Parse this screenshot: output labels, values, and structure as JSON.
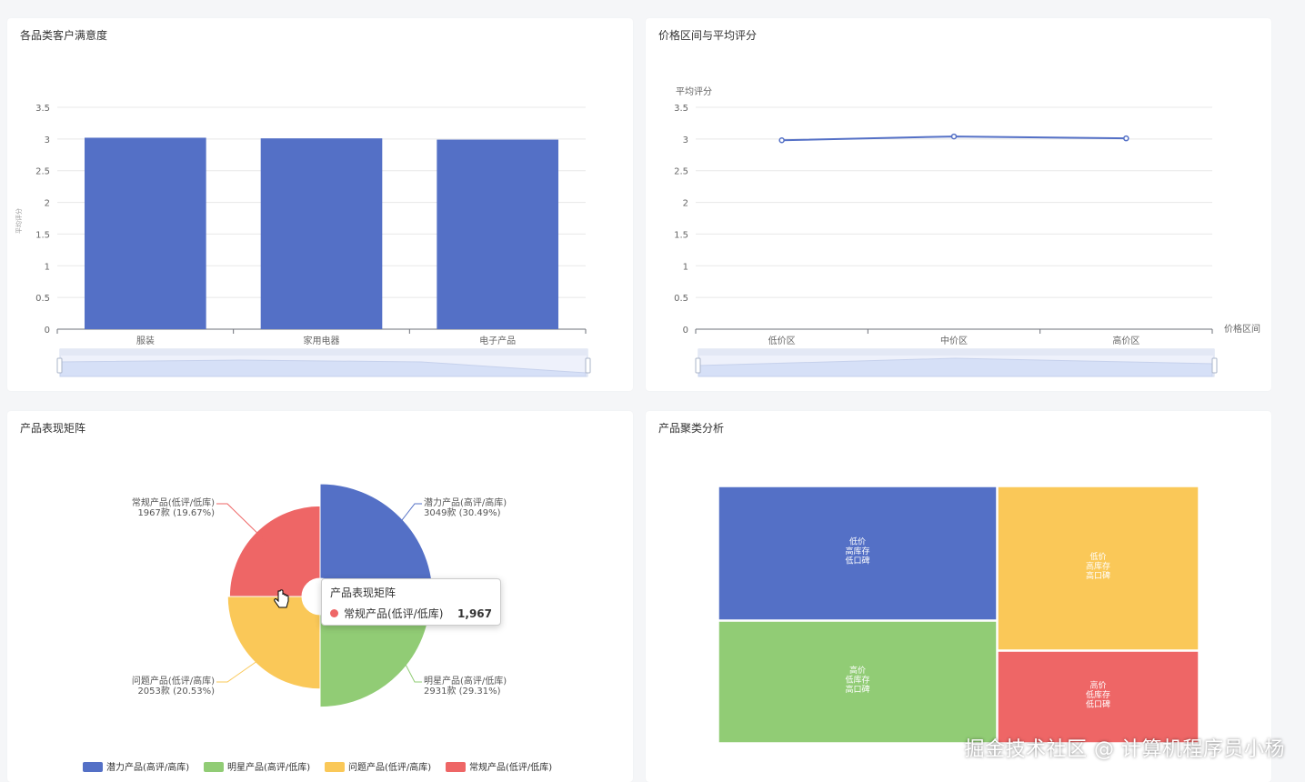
{
  "panels": {
    "satisfaction": {
      "title": "各品类客户满意度"
    },
    "price": {
      "title": "价格区间与平均评分"
    },
    "matrix": {
      "title": "产品表现矩阵"
    },
    "cluster": {
      "title": "产品聚类分析"
    }
  },
  "chart_data": [
    {
      "type": "bar",
      "categories": [
        "服装",
        "家用电器",
        "电子产品"
      ],
      "values": [
        3.02,
        3.01,
        2.99
      ],
      "ylim": [
        0,
        3.5
      ],
      "yticks": [
        "0",
        "0.5",
        "1",
        "1.5",
        "2",
        "2.5",
        "3",
        "3.5"
      ],
      "ylabel": "平均评分",
      "color": "#5470c6",
      "grid": true,
      "datazoom": true
    },
    {
      "type": "line",
      "categories": [
        "低价区",
        "中价区",
        "高价区"
      ],
      "values": [
        2.98,
        3.04,
        3.01
      ],
      "ylim": [
        0,
        3.5
      ],
      "yticks": [
        "0",
        "0.5",
        "1",
        "1.5",
        "2",
        "2.5",
        "3",
        "3.5"
      ],
      "ylabel": "平均评分",
      "xlabel": "价格区间",
      "color": "#5470c6",
      "grid": true,
      "datazoom": true
    },
    {
      "type": "pie",
      "rose": true,
      "slices": [
        {
          "name": "潜力产品(高评/高库)",
          "value": 3049,
          "label": "3049款 (30.49%)",
          "color": "#5470c6"
        },
        {
          "name": "明星产品(高评/低库)",
          "value": 2931,
          "label": "2931款 (29.31%)",
          "color": "#91cc75"
        },
        {
          "name": "问题产品(低评/高库)",
          "value": 2053,
          "label": "2053款 (20.53%)",
          "color": "#fac858"
        },
        {
          "name": "常规产品(低评/低库)",
          "value": 1967,
          "label": "1967款 (19.67%)",
          "color": "#ee6666"
        }
      ],
      "legend": "bottom",
      "tooltip": {
        "title": "产品表现矩阵",
        "name": "常规产品(低评/低库)",
        "value": "1,967",
        "color": "#ee6666"
      }
    },
    {
      "type": "treemap",
      "nodes": [
        {
          "lines": [
            "低价",
            "高库存",
            "低口碑"
          ],
          "color": "#5470c6"
        },
        {
          "lines": [
            "高价",
            "低库存",
            "高口碑"
          ],
          "color": "#91cc75"
        },
        {
          "lines": [
            "低价",
            "高库存",
            "高口碑"
          ],
          "color": "#fac858"
        },
        {
          "lines": [
            "高价",
            "低库存",
            "低口碑"
          ],
          "color": "#ee6666"
        }
      ]
    }
  ],
  "watermark": "掘金技术社区 @ 计算机程序员小杨"
}
